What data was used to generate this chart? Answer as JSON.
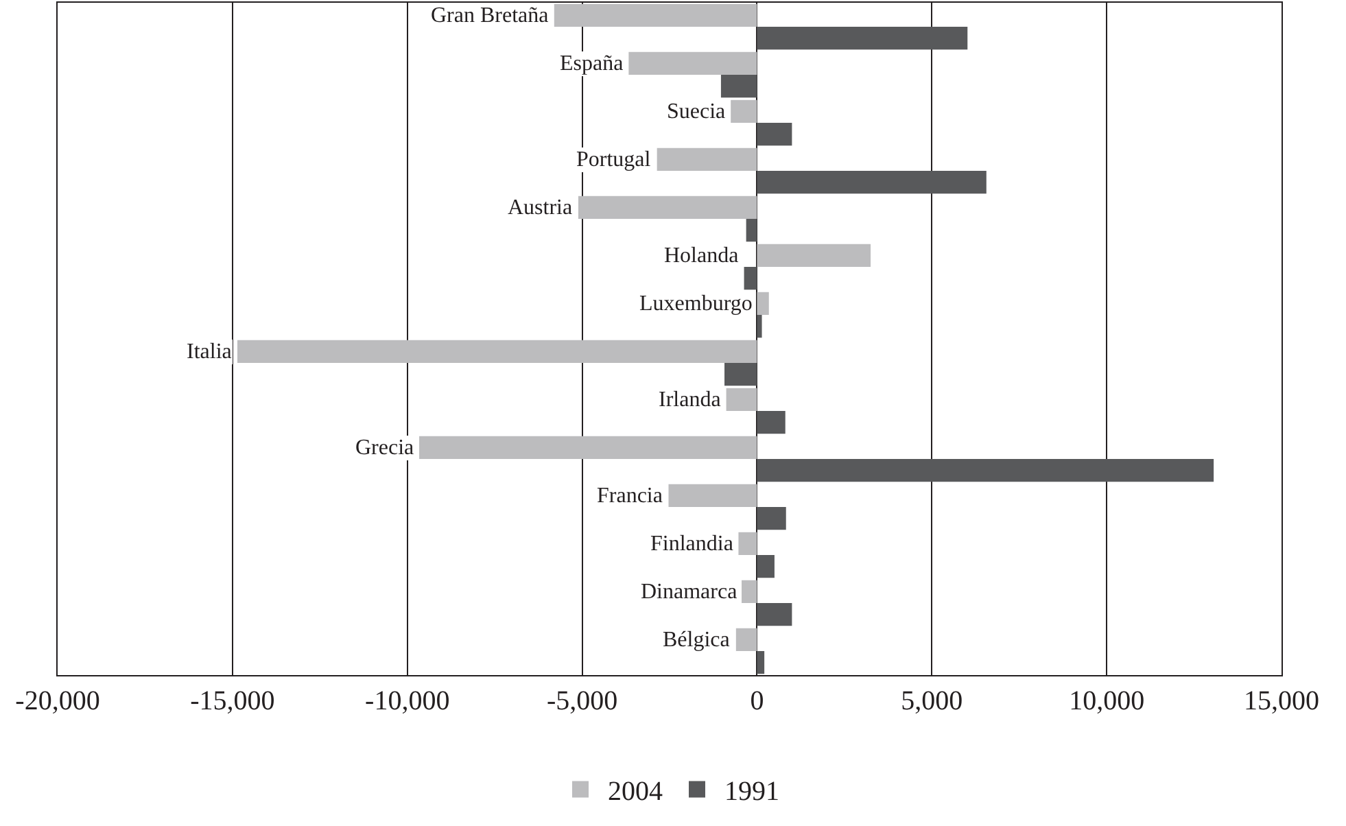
{
  "chart_data": {
    "type": "bar",
    "orientation": "horizontal",
    "categories": [
      "Gran Bretaña",
      "España",
      "Suecia",
      "Portugal",
      "Austria",
      "Holanda",
      "Luxemburgo",
      "Italia",
      "Irlanda",
      "Grecia",
      "Francia",
      "Finlandia",
      "Dinamarca",
      "Bélgica"
    ],
    "series": [
      {
        "name": "2004",
        "color": "#bcbcbe",
        "values": [
          -5800,
          -3670,
          -750,
          -2860,
          -5110,
          3250,
          340,
          -14860,
          -880,
          -9660,
          -2530,
          -530,
          -440,
          -600
        ]
      },
      {
        "name": "1991",
        "color": "#58595b",
        "values": [
          6020,
          -1030,
          1000,
          6560,
          -310,
          -370,
          140,
          -930,
          810,
          13060,
          830,
          500,
          1000,
          210
        ]
      }
    ],
    "xlim": [
      -20000,
      15000
    ],
    "xticks": [
      {
        "value": -20000,
        "label": "-20,000"
      },
      {
        "value": -15000,
        "label": "-15,000"
      },
      {
        "value": -10000,
        "label": "-10,000"
      },
      {
        "value": -5000,
        "label": "-5,000"
      },
      0,
      {
        "value": 5000,
        "label": "5,000"
      },
      {
        "value": 10000,
        "label": "10,000"
      },
      {
        "value": 15000,
        "label": "15,000"
      }
    ],
    "grid": "x",
    "legend": "bottom"
  }
}
